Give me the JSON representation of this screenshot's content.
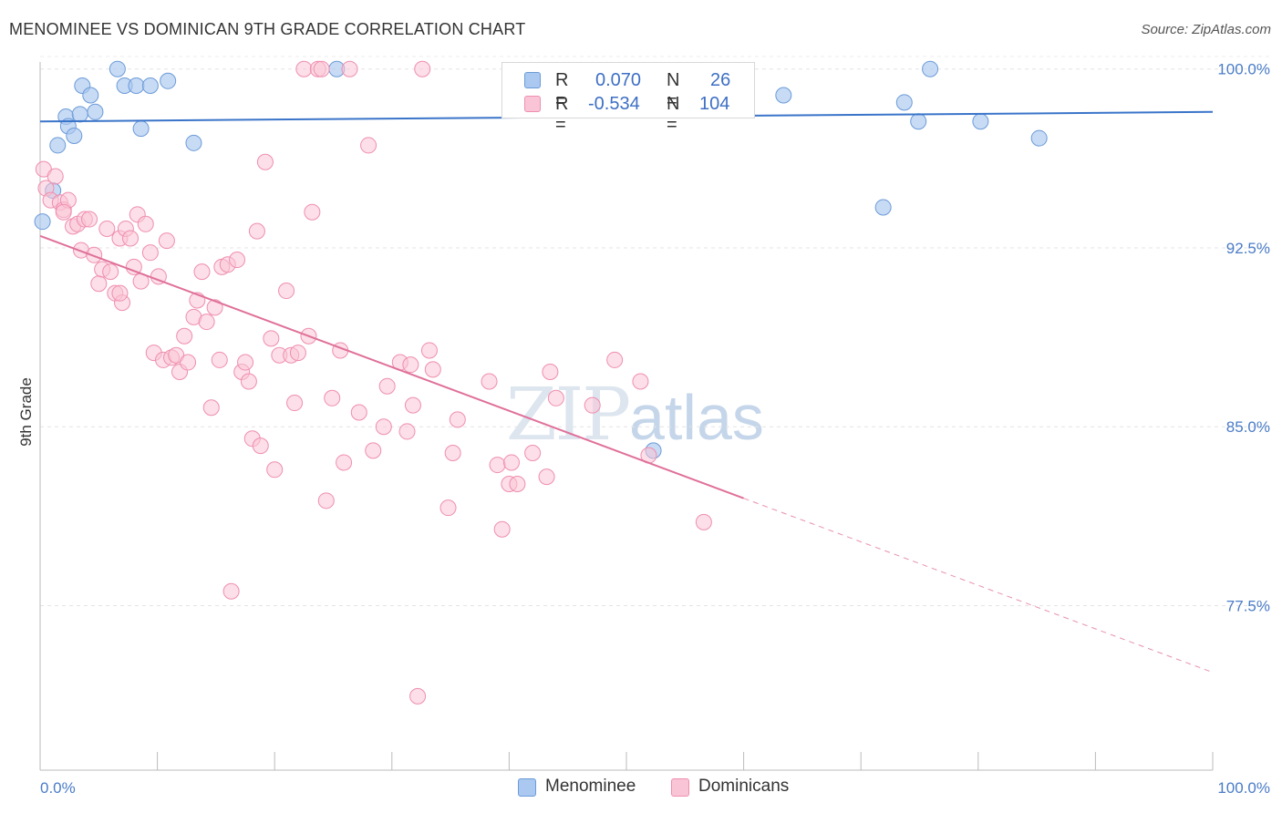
{
  "header": {
    "title": "MENOMINEE VS DOMINICAN 9TH GRADE CORRELATION CHART",
    "source": "Source: ZipAtlas.com"
  },
  "watermark": {
    "zip": "ZIP",
    "atlas": "atlas"
  },
  "legend": {
    "rows": [
      {
        "r_label": "R =",
        "r_value": "0.070",
        "n_label": "N =",
        "n_value": "26",
        "color": "#aac8f0",
        "stroke": "#6b9bd8"
      },
      {
        "r_label": "R =",
        "r_value": "-0.534",
        "n_label": "N =",
        "n_value": "104",
        "color": "#f9c5d6",
        "stroke": "#ef8eae"
      }
    ]
  },
  "bottom_legend": {
    "items": [
      {
        "label": "Menominee",
        "color": "#aac8f0",
        "stroke": "#6b9bd8"
      },
      {
        "label": "Dominicans",
        "color": "#f9c5d6",
        "stroke": "#ef8eae"
      }
    ]
  },
  "chart_data": {
    "type": "scatter",
    "title": "MENOMINEE VS DOMINICAN 9TH GRADE CORRELATION CHART",
    "xlabel": "",
    "ylabel": "9th Grade",
    "xlim": [
      0,
      100
    ],
    "ylim": [
      70.6,
      100.6
    ],
    "x_tick_labels": [
      "0.0%",
      "100.0%"
    ],
    "y_ticks": [
      100.0,
      92.5,
      85.0,
      77.5
    ],
    "y_tick_labels": [
      "100.0%",
      "92.5%",
      "85.0%",
      "77.5%"
    ],
    "grid": true,
    "legend_position": "top-center",
    "series": [
      {
        "name": "Menominee",
        "color": "#6b9bd8",
        "fill": "#aac8f0",
        "trend": {
          "x": [
            0,
            100
          ],
          "y": [
            97.8,
            98.2
          ]
        },
        "points": [
          [
            0.2,
            93.6
          ],
          [
            1.1,
            94.9
          ],
          [
            1.5,
            96.8
          ],
          [
            2.2,
            98.0
          ],
          [
            2.4,
            97.6
          ],
          [
            2.9,
            97.2
          ],
          [
            3.4,
            98.1
          ],
          [
            3.6,
            99.3
          ],
          [
            4.3,
            98.9
          ],
          [
            4.7,
            98.2
          ],
          [
            6.6,
            100.0
          ],
          [
            7.2,
            99.3
          ],
          [
            8.2,
            99.3
          ],
          [
            8.6,
            97.5
          ],
          [
            9.4,
            99.3
          ],
          [
            10.9,
            99.5
          ],
          [
            13.1,
            96.9
          ],
          [
            25.3,
            100.0
          ],
          [
            52.3,
            84.0
          ],
          [
            63.4,
            98.9
          ],
          [
            71.9,
            94.2
          ],
          [
            73.7,
            98.6
          ],
          [
            74.9,
            97.8
          ],
          [
            75.9,
            100.0
          ],
          [
            80.2,
            97.8
          ],
          [
            85.2,
            97.1
          ]
        ]
      },
      {
        "name": "Dominicans",
        "color": "#ef8eae",
        "fill": "#f9c5d6",
        "trend": {
          "x": [
            0,
            60
          ],
          "y": [
            93.0,
            82.0
          ],
          "dashed_to": {
            "x": 100,
            "y": 74.7
          }
        },
        "points": [
          [
            0.3,
            95.8
          ],
          [
            0.5,
            95.0
          ],
          [
            0.9,
            94.5
          ],
          [
            1.3,
            95.5
          ],
          [
            1.7,
            94.4
          ],
          [
            2.0,
            94.1
          ],
          [
            2.4,
            94.5
          ],
          [
            2.8,
            93.4
          ],
          [
            3.2,
            93.5
          ],
          [
            3.5,
            92.4
          ],
          [
            3.8,
            93.7
          ],
          [
            4.2,
            93.7
          ],
          [
            4.6,
            92.2
          ],
          [
            5.0,
            91.0
          ],
          [
            5.3,
            91.6
          ],
          [
            5.7,
            93.3
          ],
          [
            6.0,
            91.5
          ],
          [
            6.4,
            90.6
          ],
          [
            6.8,
            92.9
          ],
          [
            7.0,
            90.2
          ],
          [
            7.3,
            93.3
          ],
          [
            7.7,
            92.9
          ],
          [
            8.0,
            91.7
          ],
          [
            8.3,
            93.9
          ],
          [
            8.6,
            91.1
          ],
          [
            9.0,
            93.5
          ],
          [
            9.4,
            92.3
          ],
          [
            9.7,
            88.1
          ],
          [
            10.1,
            91.3
          ],
          [
            10.5,
            87.8
          ],
          [
            10.8,
            92.8
          ],
          [
            11.2,
            87.9
          ],
          [
            11.6,
            88.0
          ],
          [
            11.9,
            87.3
          ],
          [
            12.3,
            88.8
          ],
          [
            12.6,
            87.7
          ],
          [
            13.1,
            89.6
          ],
          [
            13.4,
            90.3
          ],
          [
            13.8,
            91.5
          ],
          [
            14.2,
            89.4
          ],
          [
            14.6,
            85.8
          ],
          [
            14.9,
            90.0
          ],
          [
            15.3,
            87.8
          ],
          [
            15.5,
            91.7
          ],
          [
            16.0,
            91.8
          ],
          [
            16.3,
            78.1
          ],
          [
            16.8,
            92.0
          ],
          [
            17.2,
            87.3
          ],
          [
            17.5,
            87.7
          ],
          [
            17.8,
            86.9
          ],
          [
            18.1,
            84.5
          ],
          [
            18.5,
            93.2
          ],
          [
            18.8,
            84.2
          ],
          [
            19.2,
            96.1
          ],
          [
            19.7,
            88.7
          ],
          [
            20.0,
            83.2
          ],
          [
            20.4,
            88.0
          ],
          [
            21.0,
            90.7
          ],
          [
            21.4,
            88.0
          ],
          [
            21.7,
            86.0
          ],
          [
            22.0,
            88.1
          ],
          [
            22.5,
            100.0
          ],
          [
            22.9,
            88.8
          ],
          [
            23.2,
            94.0
          ],
          [
            23.7,
            100.0
          ],
          [
            24.0,
            100.0
          ],
          [
            24.4,
            81.9
          ],
          [
            24.9,
            86.2
          ],
          [
            25.6,
            88.2
          ],
          [
            25.9,
            83.5
          ],
          [
            26.4,
            100.0
          ],
          [
            27.2,
            85.6
          ],
          [
            28.0,
            96.8
          ],
          [
            28.4,
            84.0
          ],
          [
            29.3,
            85.0
          ],
          [
            29.6,
            86.7
          ],
          [
            30.7,
            87.7
          ],
          [
            31.3,
            84.8
          ],
          [
            31.6,
            87.6
          ],
          [
            31.8,
            85.9
          ],
          [
            32.2,
            73.7
          ],
          [
            32.6,
            100.0
          ],
          [
            33.2,
            88.2
          ],
          [
            33.5,
            87.4
          ],
          [
            34.8,
            81.6
          ],
          [
            35.2,
            83.9
          ],
          [
            35.6,
            85.3
          ],
          [
            38.3,
            86.9
          ],
          [
            39.0,
            83.4
          ],
          [
            39.4,
            80.7
          ],
          [
            40.0,
            82.6
          ],
          [
            40.2,
            83.5
          ],
          [
            40.7,
            82.6
          ],
          [
            42.0,
            83.9
          ],
          [
            43.2,
            82.9
          ],
          [
            43.5,
            87.3
          ],
          [
            44.0,
            86.2
          ],
          [
            47.1,
            85.9
          ],
          [
            49.0,
            87.8
          ],
          [
            51.2,
            86.9
          ],
          [
            51.9,
            83.8
          ],
          [
            56.6,
            81.0
          ],
          [
            2.0,
            94.0
          ],
          [
            6.8,
            90.6
          ]
        ]
      }
    ]
  }
}
